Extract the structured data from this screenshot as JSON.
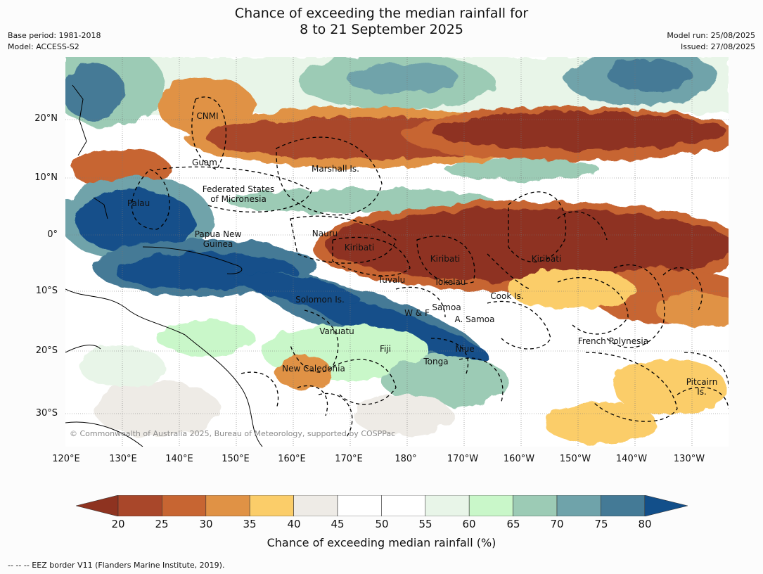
{
  "title": {
    "line1": "Chance of exceeding the median rainfall for",
    "line2": "8 to 21 September 2025"
  },
  "meta": {
    "base_period": "Base period: 1981-2018",
    "model": "Model: ACCESS-S2",
    "model_run": "Model run: 25/08/2025",
    "issued": "Issued: 27/08/2025"
  },
  "map": {
    "copyright": "© Commonwealth of Australia 2025, Bureau of Meteorology, supported by COSPPac",
    "regions": [
      {
        "label": "CNMI"
      },
      {
        "label": "Guam"
      },
      {
        "label": "Marshall Is."
      },
      {
        "label": "Federated States\nof Micronesia"
      },
      {
        "label": "Palau"
      },
      {
        "label": "Nauru"
      },
      {
        "label": "Papua New\nGuinea"
      },
      {
        "label": "Kiribati"
      },
      {
        "label": "Kiribati"
      },
      {
        "label": "Kiribati"
      },
      {
        "label": "Tuvalu"
      },
      {
        "label": "Tokelau"
      },
      {
        "label": "Cook Is."
      },
      {
        "label": "Solomon Is."
      },
      {
        "label": "Samoa"
      },
      {
        "label": "W & F"
      },
      {
        "label": "A. Samoa"
      },
      {
        "label": "Vanuatu"
      },
      {
        "label": "French Polynesia"
      },
      {
        "label": "Fiji"
      },
      {
        "label": "Niue"
      },
      {
        "label": "Tonga"
      },
      {
        "label": "New Caledonia"
      },
      {
        "label": "Pitcairn\nIs."
      }
    ]
  },
  "axes": {
    "lat_labels": [
      "20°N",
      "10°N",
      "0°",
      "10°S",
      "20°S",
      "30°S"
    ],
    "lon_labels": [
      "120°E",
      "130°E",
      "140°E",
      "150°E",
      "160°E",
      "170°E",
      "180°",
      "170°W",
      "160°W",
      "150°W",
      "140°W",
      "130°W"
    ]
  },
  "colorbar": {
    "label": "Chance of exceeding median rainfall (%)",
    "ticks": [
      "20",
      "25",
      "30",
      "35",
      "40",
      "45",
      "50",
      "55",
      "60",
      "65",
      "70",
      "75",
      "80"
    ],
    "under_color": "#8e3320",
    "over_color": "#124f8a",
    "colors": [
      "#a9472a",
      "#c76532",
      "#e09245",
      "#fbcd69",
      "#eeebe6",
      "#ffffff",
      "#ffffff",
      "#e8f5e8",
      "#c9f7c9",
      "#9ccbb5",
      "#6fa3aa",
      "#447a96"
    ]
  },
  "footer": "--  --  -- EEZ border V11 (Flanders Marine Institute, 2019)."
}
